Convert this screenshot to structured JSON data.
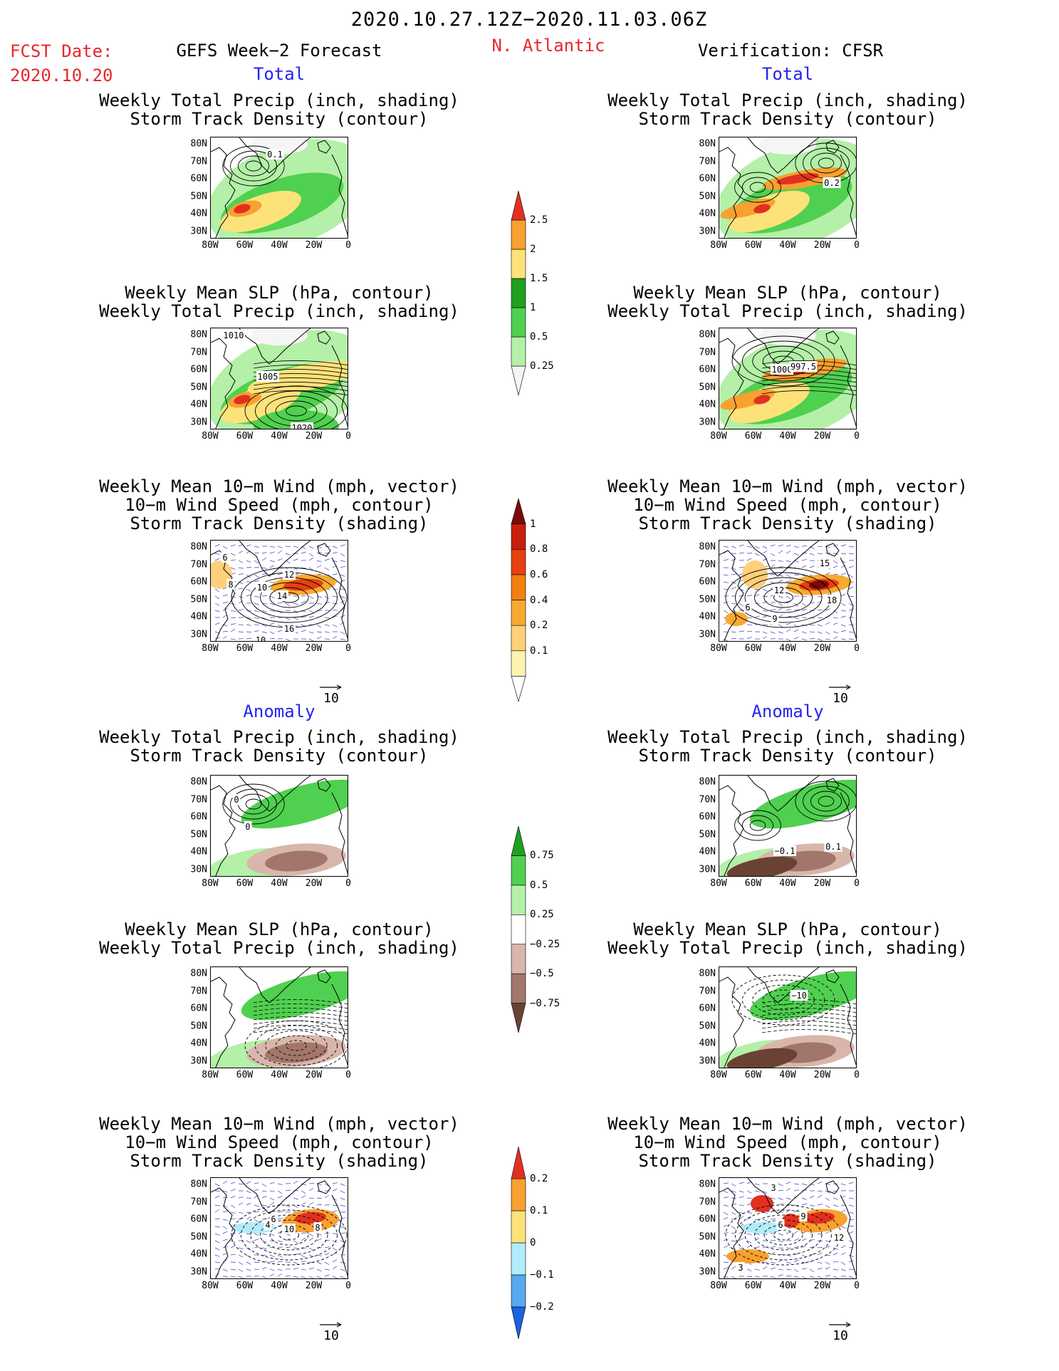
{
  "header": {
    "date_range": "2020.10.27.12Z−2020.11.03.06Z",
    "fcst_label": "FCST Date:",
    "fcst_date": "2020.10.20",
    "left_title": "GEFS Week−2 Forecast",
    "region": "N. Atlantic",
    "right_title": "Verification: CFSR",
    "total_label": "Total",
    "anomaly_label": "Anomaly"
  },
  "panels": {
    "precip_track": [
      "Weekly Total Precip (inch, shading)",
      "Storm Track Density (contour)"
    ],
    "slp_precip": [
      "Weekly Mean SLP (hPa, contour)",
      "Weekly Total Precip (inch, shading)"
    ],
    "wind_track": [
      "Weekly Mean 10−m Wind (mph, vector)",
      "10−m Wind Speed (mph, contour)",
      "Storm Track Density (shading)"
    ]
  },
  "axes": {
    "lat_ticks": [
      "80N",
      "70N",
      "60N",
      "50N",
      "40N",
      "30N"
    ],
    "lon_ticks": [
      "80W",
      "60W",
      "40W",
      "20W",
      "0"
    ]
  },
  "vector_reference": "10",
  "contour_labels": {
    "fc_total_precip": [
      "0.1"
    ],
    "ver_total_precip": [
      "0.2"
    ],
    "fc_total_slp": [
      "1010",
      "1005",
      "1020"
    ],
    "ver_total_slp": [
      "1000",
      "997.5"
    ],
    "fc_total_wind": [
      "6",
      "8",
      "10",
      "12",
      "14",
      "16",
      "10"
    ],
    "ver_total_wind": [
      "15",
      "12",
      "18",
      "6",
      "9"
    ],
    "fc_anom_precip": [
      "0",
      "0"
    ],
    "ver_anom_precip": [
      "−0.1",
      "0.1"
    ],
    "fc_anom_slp": [],
    "ver_anom_slp": [
      "−10"
    ],
    "fc_anom_wind": [
      "6",
      "4",
      "10",
      "8"
    ],
    "ver_anom_wind": [
      "3",
      "9",
      "6",
      "12",
      "3"
    ]
  },
  "colorbars": {
    "precip_total": {
      "labels": [
        "2.5",
        "2",
        "1.5",
        "1",
        "0.5",
        "0.25"
      ],
      "colors": [
        "#f5f5f5",
        "#b4f0a8",
        "#50d050",
        "#1ea01e",
        "#fde27a",
        "#f8a030",
        "#e23020"
      ]
    },
    "track_total": {
      "labels": [
        "1",
        "0.8",
        "0.6",
        "0.4",
        "0.2",
        "0.1"
      ],
      "colors": [
        "#ffffff",
        "#fff3b0",
        "#fed07a",
        "#f8aa30",
        "#f28010",
        "#e64010",
        "#c81e0e",
        "#7a0a0a"
      ]
    },
    "precip_anom": {
      "labels": [
        "0.75",
        "0.5",
        "0.25",
        "−0.25",
        "−0.5",
        "−0.75"
      ],
      "colors": [
        "#6a4234",
        "#a2766a",
        "#d8b6ac",
        "#ffffff",
        "#b4f0a8",
        "#50d050",
        "#1ea01e"
      ]
    },
    "track_anom": {
      "labels": [
        "0.2",
        "0.1",
        "0",
        "−0.1",
        "−0.2"
      ],
      "colors": [
        "#1a62e0",
        "#58a8ee",
        "#b0ecfa",
        "#fde27a",
        "#f8a030",
        "#e23020"
      ]
    }
  }
}
